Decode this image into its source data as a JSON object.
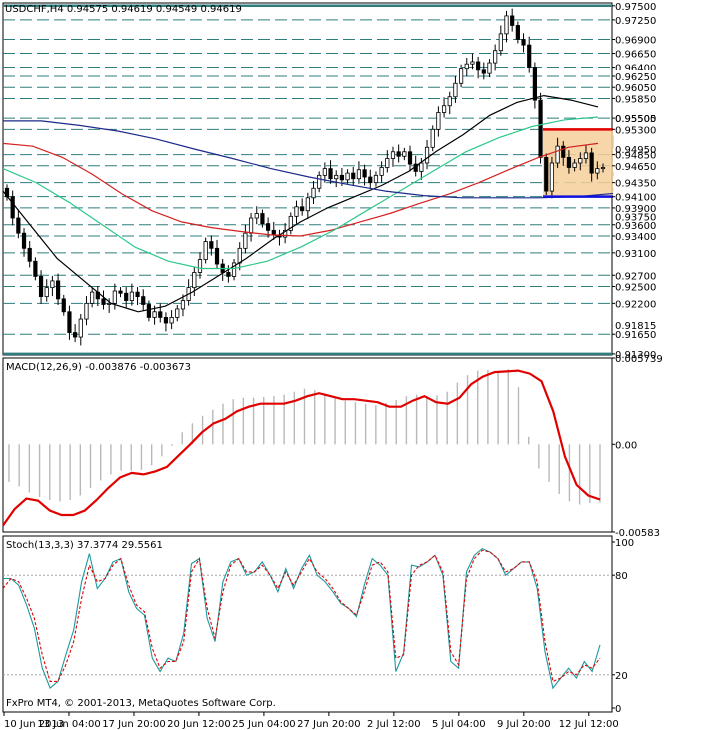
{
  "colors": {
    "background": "#ffffff",
    "grid": "#2e7d7d",
    "candle": "#000000",
    "ma_black": "#000000",
    "ma_red": "#d42020",
    "ma_green": "#2cc88a",
    "ma_blue": "#1c2a8c",
    "channel_fill": "#f6cf9a",
    "resistance": "#e00000",
    "support": "#1010e0",
    "macd_hist": "#b8b8b8",
    "macd_signal": "#e00000",
    "stoch_main": "#1a9aa0",
    "stoch_signal": "#e00000"
  },
  "header": {
    "symbol_info": "USDCHF,H4  0.94575  0.94619  0.94549  0.94619"
  },
  "footer": {
    "copyright": "FxPro MT4, © 2001-2013, MetaQuotes Software Corp."
  },
  "chart_data": [
    {
      "type": "candlestick",
      "title": "USDCHF,H4",
      "ohlc_last": {
        "open": 0.94575,
        "high": 0.94619,
        "low": 0.94549,
        "close": 0.94619
      },
      "ylim": [
        0.9128,
        0.9755
      ],
      "price_labels": [
        "0.97500",
        "0.97250",
        "0.96900",
        "0.96650",
        "0.96400",
        "0.96250",
        "0.96050",
        "0.95850",
        "0.95500",
        "0.95300",
        "0.94850",
        "0.94650",
        "0.94350",
        "0.94100",
        "0.93900",
        "0.93600",
        "0.93400",
        "0.93100",
        "0.92700",
        "0.92500",
        "0.92200",
        "0.91650",
        "0.91300"
      ],
      "partial_labels": [
        "0.95505",
        "0.94950",
        "0.93750",
        "0.91815"
      ],
      "x_labels": [
        "10 Jun 2013",
        "13 Jun 04:00",
        "17 Jun 20:00",
        "20 Jun 12:00",
        "25 Jun 04:00",
        "27 Jun 20:00",
        "2 Jul 12:00",
        "5 Jul 04:00",
        "9 Jul 20:00",
        "12 Jul 12:00"
      ],
      "close_series": [
        0.941,
        0.9372,
        0.9345,
        0.9318,
        0.9295,
        0.9268,
        0.9232,
        0.9248,
        0.926,
        0.9228,
        0.9205,
        0.9168,
        0.916,
        0.9192,
        0.922,
        0.924,
        0.9228,
        0.9218,
        0.922,
        0.9242,
        0.9238,
        0.9225,
        0.924,
        0.9232,
        0.9218,
        0.9195,
        0.9205,
        0.9195,
        0.9185,
        0.9195,
        0.921,
        0.9225,
        0.9248,
        0.9275,
        0.9298,
        0.933,
        0.9318,
        0.929,
        0.9275,
        0.9268,
        0.9292,
        0.9318,
        0.9345,
        0.9372,
        0.938,
        0.9362,
        0.935,
        0.9342,
        0.9338,
        0.935,
        0.9375,
        0.9392,
        0.9385,
        0.9408,
        0.9425,
        0.9448,
        0.946,
        0.9442,
        0.9448,
        0.944,
        0.9452,
        0.9442,
        0.9458,
        0.9445,
        0.9435,
        0.9448,
        0.9462,
        0.9478,
        0.949,
        0.9482,
        0.949,
        0.9468,
        0.9455,
        0.947,
        0.9498,
        0.953,
        0.956,
        0.9572,
        0.9588,
        0.9612,
        0.9638,
        0.9646,
        0.965,
        0.9636,
        0.963,
        0.9648,
        0.967,
        0.97,
        0.9732,
        0.9715,
        0.969,
        0.968,
        0.964,
        0.9582,
        0.948,
        0.942,
        0.947,
        0.95,
        0.948,
        0.9462,
        0.947,
        0.9478,
        0.9488,
        0.9452,
        0.946,
        0.9462
      ],
      "moving_averages": [
        {
          "color": "black",
          "values": [
            0.942,
            0.936,
            0.93,
            0.926,
            0.922,
            0.9205,
            0.9215,
            0.924,
            0.927,
            0.93,
            0.9335,
            0.9365,
            0.939,
            0.941,
            0.943,
            0.9455,
            0.949,
            0.952,
            0.9555,
            0.9578,
            0.959,
            0.9582,
            0.957
          ]
        },
        {
          "color": "red",
          "values": [
            0.9505,
            0.95,
            0.948,
            0.945,
            0.9415,
            0.9385,
            0.9365,
            0.9355,
            0.9348,
            0.9342,
            0.934,
            0.935,
            0.9365,
            0.938,
            0.9398,
            0.9415,
            0.9435,
            0.9458,
            0.948,
            0.9498,
            0.9505
          ]
        },
        {
          "color": "green",
          "values": [
            0.946,
            0.9435,
            0.94,
            0.936,
            0.932,
            0.9295,
            0.9282,
            0.9282,
            0.9295,
            0.932,
            0.935,
            0.9385,
            0.942,
            0.9455,
            0.949,
            0.9515,
            0.9535,
            0.9547,
            0.9552
          ]
        },
        {
          "color": "blue",
          "values": [
            0.9545,
            0.9545,
            0.9537,
            0.9527,
            0.9513,
            0.9495,
            0.9478,
            0.946,
            0.9445,
            0.9432,
            0.942,
            0.9412,
            0.9408,
            0.9408,
            0.9408,
            0.941,
            0.9416
          ]
        }
      ],
      "channel": {
        "top": 0.953,
        "bottom": 0.941
      }
    },
    {
      "type": "bar",
      "title": "MACD(12,26,9)",
      "values_text": "-0.003876 -0.003673",
      "ylim": [
        -0.00583,
        0.00574
      ],
      "tick_labels": [
        "0.005739",
        "0.00",
        "-0.00583"
      ],
      "histogram": [
        -0.0025,
        -0.0028,
        -0.0032,
        -0.0035,
        -0.0037,
        -0.0038,
        -0.0037,
        -0.0034,
        -0.0029,
        -0.0024,
        -0.002,
        -0.00175,
        -0.00175,
        -0.0017,
        -0.0014,
        -0.0008,
        -0.0001,
        0.0008,
        0.0014,
        0.0019,
        0.0023,
        0.0027,
        0.003,
        0.0031,
        0.0031,
        0.00315,
        0.0032,
        0.0033,
        0.0035,
        0.0037,
        0.0036,
        0.0034,
        0.0031,
        0.0029,
        0.0028,
        0.0027,
        0.0026,
        0.00275,
        0.00295,
        0.0032,
        0.0033,
        0.0032,
        0.00325,
        0.0035,
        0.0041,
        0.0046,
        0.0049,
        0.00495,
        0.0049,
        0.005,
        0.0038,
        0.0005,
        -0.0016,
        -0.0025,
        -0.0033,
        -0.0038,
        -0.004,
        -0.0039,
        -0.00388
      ],
      "signal": [
        -0.0054,
        -0.0043,
        -0.0036,
        -0.00375,
        -0.0044,
        -0.0047,
        -0.0047,
        -0.0044,
        -0.0037,
        -0.0029,
        -0.0022,
        -0.0019,
        -0.002,
        -0.0018,
        -0.0015,
        -0.00075,
        0.0,
        0.0008,
        0.0014,
        0.0017,
        0.0022,
        0.0025,
        0.0027,
        0.0027,
        0.0027,
        0.0029,
        0.0032,
        0.0034,
        0.0032,
        0.003,
        0.003,
        0.0029,
        0.0028,
        0.0025,
        0.0025,
        0.0029,
        0.0032,
        0.0028,
        0.0027,
        0.0031,
        0.004,
        0.0045,
        0.0048,
        0.00485,
        0.0049,
        0.0047,
        0.0042,
        0.0022,
        -0.0008,
        -0.0027,
        -0.0034,
        -0.00367
      ]
    },
    {
      "type": "line",
      "title": "Stoch(13,3,3)",
      "values_text": "37.3774 29.5561",
      "ylim": [
        0,
        100
      ],
      "tick_labels": [
        "100",
        "80",
        "20",
        "0"
      ],
      "series": [
        {
          "values": [
            78,
            78,
            74,
            62,
            48,
            24,
            12,
            16,
            32,
            47,
            76,
            93,
            72,
            78,
            88,
            90,
            70,
            60,
            56,
            30,
            22,
            30,
            28,
            45,
            87,
            90,
            54,
            40,
            76,
            88,
            90,
            80,
            82,
            88,
            80,
            70,
            84,
            72,
            84,
            92,
            80,
            76,
            70,
            63,
            60,
            55,
            74,
            90,
            86,
            80,
            22,
            33,
            86,
            85,
            88,
            92,
            80,
            28,
            24,
            82,
            92,
            96,
            94,
            90,
            80,
            84,
            88,
            88,
            72,
            34,
            12,
            18,
            24,
            18,
            28,
            22,
            38
          ]
        },
        {
          "values": [
            72,
            78,
            76,
            66,
            54,
            32,
            16,
            16,
            26,
            40,
            66,
            86,
            76,
            78,
            86,
            90,
            74,
            62,
            58,
            36,
            24,
            28,
            28,
            40,
            82,
            90,
            60,
            42,
            70,
            86,
            90,
            82,
            82,
            86,
            80,
            72,
            82,
            74,
            82,
            90,
            82,
            78,
            72,
            64,
            60,
            56,
            70,
            86,
            88,
            82,
            30,
            32,
            80,
            86,
            88,
            92,
            82,
            34,
            26,
            78,
            90,
            95,
            94,
            90,
            82,
            84,
            88,
            88,
            76,
            40,
            16,
            18,
            22,
            20,
            26,
            24,
            30
          ]
        }
      ]
    }
  ]
}
